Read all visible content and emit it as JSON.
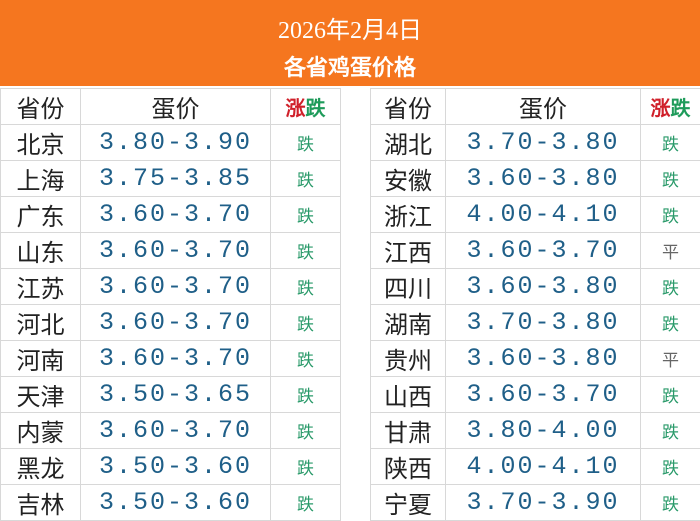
{
  "header": {
    "date": "2026年2月4日",
    "title": "各省鸡蛋价格"
  },
  "table": {
    "columns": {
      "province": "省份",
      "price": "蛋价",
      "change_up": "涨",
      "change_down": "跌"
    },
    "left": [
      [
        "北京",
        "3.80-3.90",
        "跌"
      ],
      [
        "上海",
        "3.75-3.85",
        "跌"
      ],
      [
        "广东",
        "3.60-3.70",
        "跌"
      ],
      [
        "山东",
        "3.60-3.70",
        "跌"
      ],
      [
        "江苏",
        "3.60-3.70",
        "跌"
      ],
      [
        "河北",
        "3.60-3.70",
        "跌"
      ],
      [
        "河南",
        "3.60-3.70",
        "跌"
      ],
      [
        "天津",
        "3.50-3.65",
        "跌"
      ],
      [
        "内蒙",
        "3.60-3.70",
        "跌"
      ],
      [
        "黑龙",
        "3.50-3.60",
        "跌"
      ],
      [
        "吉林",
        "3.50-3.60",
        "跌"
      ]
    ],
    "right": [
      [
        "湖北",
        "3.70-3.80",
        "跌"
      ],
      [
        "安徽",
        "3.60-3.80",
        "跌"
      ],
      [
        "浙江",
        "4.00-4.10",
        "跌"
      ],
      [
        "江西",
        "3.60-3.70",
        "平"
      ],
      [
        "四川",
        "3.60-3.80",
        "跌"
      ],
      [
        "湖南",
        "3.70-3.80",
        "跌"
      ],
      [
        "贵州",
        "3.60-3.80",
        "平"
      ],
      [
        "山西",
        "3.60-3.70",
        "跌"
      ],
      [
        "甘肃",
        "3.80-4.00",
        "跌"
      ],
      [
        "陕西",
        "4.00-4.10",
        "跌"
      ],
      [
        "宁夏",
        "3.70-3.90",
        "跌"
      ]
    ]
  }
}
